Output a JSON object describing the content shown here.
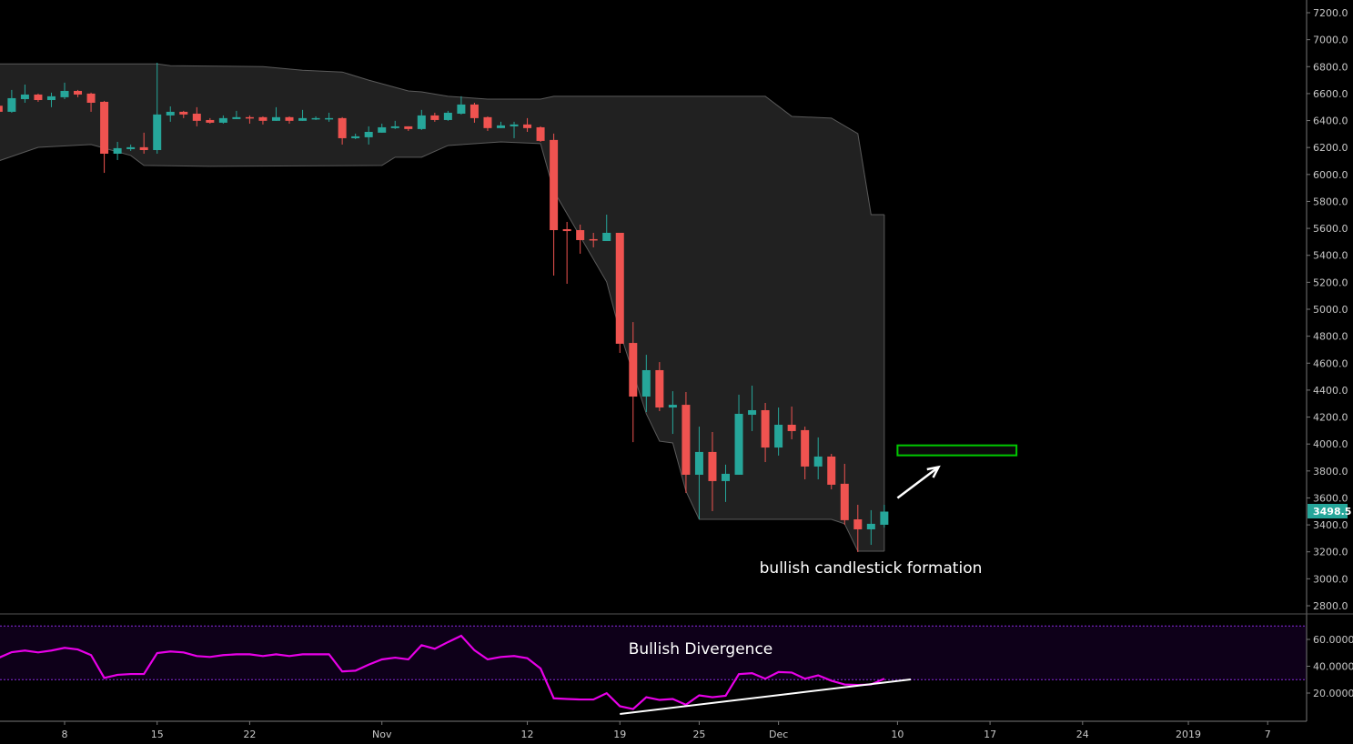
{
  "chart_data": {
    "type": "candlestick",
    "colors": {
      "up": "#26a69a",
      "down": "#ef5350",
      "band_fill": "#212121",
      "band_line": "#5a5a5a",
      "rsi_line": "#e800e8",
      "rsi_band_fill": "#0e0019",
      "rsi_band_line": "#8a2be2",
      "background": "#000000",
      "annotation_box": "#00c800",
      "annotation_arrow": "#ffffff",
      "last_price_label": "#26a69a"
    },
    "price_axis": {
      "range": [
        2800,
        7200
      ],
      "ticks": [
        "7200.0",
        "7000.0",
        "6800.0",
        "6600.0",
        "6400.0",
        "6200.0",
        "6000.0",
        "5800.0",
        "5600.0",
        "5400.0",
        "5200.0",
        "5000.0",
        "4800.0",
        "4600.0",
        "4400.0",
        "4200.0",
        "4000.0",
        "3800.0",
        "3600.0",
        "3400.0",
        "3200.0",
        "3000.0",
        "2800.0"
      ]
    },
    "last_price": "3498.5",
    "x_axis": {
      "ticks": [
        {
          "label": "8",
          "date": "2018-10-08"
        },
        {
          "label": "15",
          "date": "2018-10-15"
        },
        {
          "label": "22",
          "date": "2018-10-22"
        },
        {
          "label": "Nov",
          "date": "2018-11-01"
        },
        {
          "label": "12",
          "date": "2018-11-12"
        },
        {
          "label": "19",
          "date": "2018-11-19"
        },
        {
          "label": "25",
          "date": "2018-11-25"
        },
        {
          "label": "Dec",
          "date": "2018-12-01"
        },
        {
          "label": "10",
          "date": "2018-12-10"
        },
        {
          "label": "17",
          "date": "2018-12-17"
        },
        {
          "label": "24",
          "date": "2018-12-24"
        },
        {
          "label": "2019",
          "date": "2019-01-01"
        },
        {
          "label": "7",
          "date": "2019-01-07"
        }
      ]
    },
    "candles_columns": [
      "date",
      "open",
      "high",
      "low",
      "close"
    ],
    "candles": [
      [
        "2018-10-03",
        6510,
        6530,
        6450,
        6465
      ],
      [
        "2018-10-04",
        6465,
        6627,
        6458,
        6566
      ],
      [
        "2018-10-05",
        6559,
        6667,
        6532,
        6593
      ],
      [
        "2018-10-06",
        6593,
        6600,
        6539,
        6552
      ],
      [
        "2018-10-07",
        6552,
        6607,
        6499,
        6580
      ],
      [
        "2018-10-08",
        6573,
        6681,
        6559,
        6620
      ],
      [
        "2018-10-09",
        6620,
        6627,
        6573,
        6593
      ],
      [
        "2018-10-10",
        6600,
        6607,
        6465,
        6532
      ],
      [
        "2018-10-11",
        6539,
        6546,
        6012,
        6154
      ],
      [
        "2018-10-12",
        6154,
        6242,
        6107,
        6195
      ],
      [
        "2018-10-13",
        6188,
        6222,
        6175,
        6202
      ],
      [
        "2018-10-14",
        6202,
        6310,
        6154,
        6181
      ],
      [
        "2018-10-15",
        6181,
        6829,
        6154,
        6445
      ],
      [
        "2018-10-16",
        6438,
        6505,
        6391,
        6465
      ],
      [
        "2018-10-17",
        6465,
        6472,
        6418,
        6445
      ],
      [
        "2018-10-18",
        6451,
        6499,
        6357,
        6398
      ],
      [
        "2018-10-19",
        6404,
        6418,
        6377,
        6384
      ],
      [
        "2018-10-20",
        6384,
        6438,
        6377,
        6418
      ],
      [
        "2018-10-21",
        6411,
        6472,
        6411,
        6425
      ],
      [
        "2018-10-22",
        6425,
        6438,
        6377,
        6418
      ],
      [
        "2018-10-23",
        6425,
        6431,
        6371,
        6398
      ],
      [
        "2018-10-24",
        6398,
        6499,
        6398,
        6425
      ],
      [
        "2018-10-25",
        6425,
        6431,
        6377,
        6398
      ],
      [
        "2018-10-26",
        6398,
        6479,
        6398,
        6418
      ],
      [
        "2018-10-27",
        6411,
        6431,
        6404,
        6418
      ],
      [
        "2018-10-28",
        6411,
        6458,
        6391,
        6418
      ],
      [
        "2018-10-29",
        6418,
        6425,
        6222,
        6269
      ],
      [
        "2018-10-30",
        6269,
        6303,
        6262,
        6283
      ],
      [
        "2018-10-31",
        6276,
        6357,
        6222,
        6316
      ],
      [
        "2018-11-01",
        6310,
        6377,
        6310,
        6350
      ],
      [
        "2018-11-02",
        6344,
        6398,
        6337,
        6357
      ],
      [
        "2018-11-03",
        6357,
        6357,
        6323,
        6337
      ],
      [
        "2018-11-04",
        6337,
        6479,
        6330,
        6438
      ],
      [
        "2018-11-05",
        6438,
        6458,
        6391,
        6404
      ],
      [
        "2018-11-06",
        6404,
        6472,
        6398,
        6458
      ],
      [
        "2018-11-07",
        6451,
        6580,
        6445,
        6519
      ],
      [
        "2018-11-08",
        6519,
        6532,
        6384,
        6418
      ],
      [
        "2018-11-09",
        6425,
        6431,
        6323,
        6344
      ],
      [
        "2018-11-10",
        6344,
        6391,
        6344,
        6364
      ],
      [
        "2018-11-11",
        6357,
        6391,
        6269,
        6371
      ],
      [
        "2018-11-12",
        6371,
        6418,
        6316,
        6344
      ],
      [
        "2018-11-13",
        6350,
        6357,
        6242,
        6249
      ],
      [
        "2018-11-14",
        6256,
        6303,
        5250,
        5587
      ],
      [
        "2018-11-15",
        5594,
        5648,
        5189,
        5580
      ],
      [
        "2018-11-16",
        5587,
        5628,
        5412,
        5513
      ],
      [
        "2018-11-17",
        5520,
        5567,
        5459,
        5513
      ],
      [
        "2018-11-18",
        5506,
        5702,
        5506,
        5567
      ],
      [
        "2018-11-19",
        5567,
        5567,
        4676,
        4744
      ],
      [
        "2018-11-20",
        4750,
        4905,
        4014,
        4352
      ],
      [
        "2018-11-21",
        4352,
        4662,
        4237,
        4548
      ],
      [
        "2018-11-22",
        4548,
        4608,
        4244,
        4271
      ],
      [
        "2018-11-23",
        4271,
        4392,
        4075,
        4291
      ],
      [
        "2018-11-24",
        4291,
        4386,
        3637,
        3772
      ],
      [
        "2018-11-25",
        3772,
        4129,
        3441,
        3941
      ],
      [
        "2018-11-26",
        3941,
        4089,
        3502,
        3725
      ],
      [
        "2018-11-27",
        3725,
        3847,
        3570,
        3779
      ],
      [
        "2018-11-28",
        3772,
        4366,
        3772,
        4224
      ],
      [
        "2018-11-29",
        4217,
        4433,
        4096,
        4251
      ],
      [
        "2018-11-30",
        4251,
        4305,
        3866,
        3974
      ],
      [
        "2018-12-01",
        3974,
        4271,
        3914,
        4143
      ],
      [
        "2018-12-02",
        4143,
        4278,
        4035,
        4096
      ],
      [
        "2018-12-03",
        4103,
        4129,
        3738,
        3833
      ],
      [
        "2018-12-04",
        3833,
        4049,
        3738,
        3907
      ],
      [
        "2018-12-05",
        3907,
        3927,
        3664,
        3698
      ],
      [
        "2018-12-06",
        3705,
        3853,
        3401,
        3435
      ],
      [
        "2018-12-07",
        3441,
        3549,
        3198,
        3367
      ],
      [
        "2018-12-08",
        3367,
        3509,
        3252,
        3408
      ],
      [
        "2018-12-09",
        3401,
        3549,
        3381,
        3498.5
      ]
    ],
    "channel_upper": [
      [
        "2018-10-03",
        6820
      ],
      [
        "2018-10-15",
        6820
      ],
      [
        "2018-10-16",
        6807
      ],
      [
        "2018-10-23",
        6800
      ],
      [
        "2018-10-26",
        6773
      ],
      [
        "2018-10-29",
        6760
      ],
      [
        "2018-10-31",
        6700
      ],
      [
        "2018-11-03",
        6620
      ],
      [
        "2018-11-04",
        6613
      ],
      [
        "2018-11-06",
        6580
      ],
      [
        "2018-11-09",
        6559
      ],
      [
        "2018-11-13",
        6559
      ],
      [
        "2018-11-14",
        6580
      ],
      [
        "2018-11-30",
        6580
      ],
      [
        "2018-12-02",
        6431
      ],
      [
        "2018-12-05",
        6418
      ],
      [
        "2018-12-07",
        6303
      ],
      [
        "2018-12-08",
        5702
      ],
      [
        "2018-12-09",
        5702
      ]
    ],
    "channel_lower": [
      [
        "2018-10-03",
        6100
      ],
      [
        "2018-10-06",
        6201
      ],
      [
        "2018-10-10",
        6222
      ],
      [
        "2018-10-13",
        6141
      ],
      [
        "2018-10-14",
        6067
      ],
      [
        "2018-10-19",
        6060
      ],
      [
        "2018-11-01",
        6067
      ],
      [
        "2018-11-02",
        6128
      ],
      [
        "2018-11-04",
        6128
      ],
      [
        "2018-11-06",
        6215
      ],
      [
        "2018-11-10",
        6242
      ],
      [
        "2018-11-13",
        6229
      ],
      [
        "2018-11-14",
        5878
      ],
      [
        "2018-11-16",
        5540
      ],
      [
        "2018-11-18",
        5203
      ],
      [
        "2018-11-19",
        4831
      ],
      [
        "2018-11-20",
        4527
      ],
      [
        "2018-11-21",
        4224
      ],
      [
        "2018-11-22",
        4021
      ],
      [
        "2018-11-23",
        4008
      ],
      [
        "2018-11-24",
        3650
      ],
      [
        "2018-11-25",
        3441
      ],
      [
        "2018-12-05",
        3441
      ],
      [
        "2018-12-06",
        3408
      ],
      [
        "2018-12-07",
        3205
      ],
      [
        "2018-12-09",
        3205
      ]
    ],
    "rsi": {
      "range": [
        0,
        80
      ],
      "ticks": [
        "60.0000",
        "40.0000",
        "20.0000"
      ],
      "band": [
        30,
        70
      ],
      "start_date": "2018-10-03",
      "values": [
        46.2,
        50.5,
        51.7,
        50.3,
        51.7,
        53.7,
        52.5,
        48.3,
        31.3,
        33.6,
        34.2,
        34.2,
        49.8,
        51.0,
        50.3,
        47.6,
        46.9,
        48.3,
        48.9,
        48.9,
        47.6,
        48.9,
        47.6,
        48.9,
        48.9,
        48.9,
        36.1,
        36.7,
        41.2,
        45.1,
        46.4,
        45.1,
        55.7,
        53.0,
        58.0,
        62.7,
        51.9,
        45.1,
        46.9,
        47.6,
        46.0,
        38.3,
        16.1,
        15.6,
        15.2,
        15.2,
        19.9,
        10.2,
        8.1,
        16.9,
        14.9,
        15.6,
        11.3,
        18.3,
        16.9,
        18.0,
        34.1,
        34.8,
        30.7,
        35.7,
        35.3,
        30.7,
        33.2,
        29.2,
        26.4,
        26.0,
        26.4,
        30.7
      ],
      "trendline": [
        [
          "2018-11-19",
          4.4
        ],
        [
          "2018-12-11",
          30.2
        ]
      ]
    },
    "annotations": {
      "target_box": {
        "date_from": "2018-12-10",
        "date_to": "2018-12-19",
        "price_low": 3916,
        "price_high": 3990
      },
      "arrow": {
        "from": [
          "2018-12-10",
          3600
        ],
        "to": [
          "2018-12-14",
          3910
        ]
      },
      "candle_label": "bullish candlestick formation",
      "rsi_label": "Bullish Divergence"
    }
  }
}
